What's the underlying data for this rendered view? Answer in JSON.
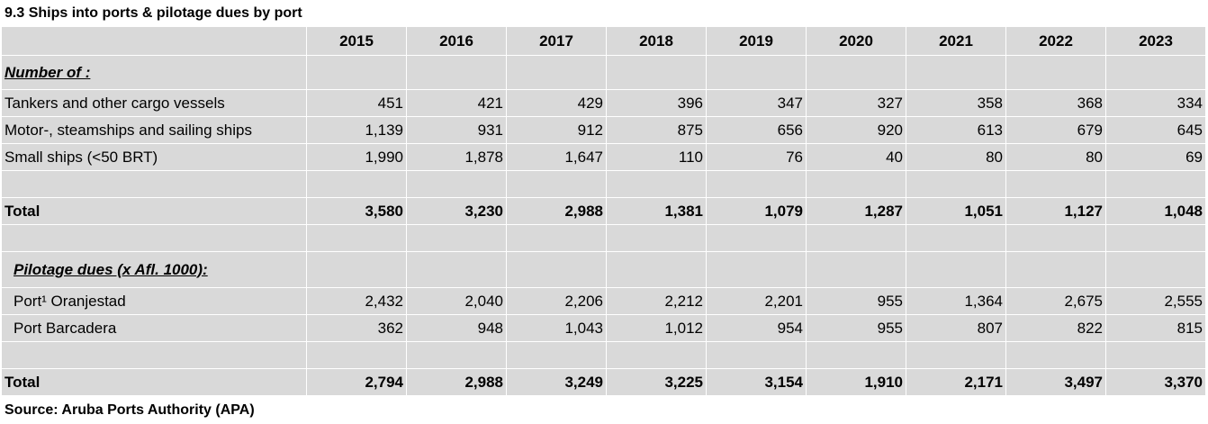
{
  "title": "9.3  Ships into ports & pilotage dues by port",
  "source": "Source: Aruba Ports Authority (APA)",
  "years": [
    "2015",
    "2016",
    "2017",
    "2018",
    "2019",
    "2020",
    "2021",
    "2022",
    "2023"
  ],
  "section1": {
    "heading": "Number  of :",
    "rows": [
      {
        "label": "Tankers and other cargo  vessels",
        "values": [
          "451",
          "421",
          "429",
          "396",
          "347",
          "327",
          "358",
          "368",
          "334"
        ]
      },
      {
        "label": "Motor-, steamships and sailing ships",
        "values": [
          "1,139",
          "931",
          "912",
          "875",
          "656",
          "920",
          "613",
          "679",
          "645"
        ]
      },
      {
        "label": "Small ships (<50 BRT)",
        "values": [
          "1,990",
          "1,878",
          "1,647",
          "110",
          "76",
          "40",
          "80",
          "80",
          "69"
        ]
      }
    ],
    "total": {
      "label": "Total",
      "values": [
        "3,580",
        "3,230",
        "2,988",
        "1,381",
        "1,079",
        "1,287",
        "1,051",
        "1,127",
        "1,048"
      ]
    }
  },
  "section2": {
    "heading": "Pilotage dues  (x Afl. 1000):",
    "rows": [
      {
        "label": "Port¹ Oranjestad",
        "values": [
          "2,432",
          "2,040",
          "2,206",
          "2,212",
          "2,201",
          "955",
          "1,364",
          "2,675",
          "2,555"
        ]
      },
      {
        "label": "Port Barcadera",
        "values": [
          "362",
          "948",
          "1,043",
          "1,012",
          "954",
          "955",
          "807",
          "822",
          "815"
        ]
      }
    ],
    "total": {
      "label": "Total",
      "values": [
        "2,794",
        "2,988",
        "3,249",
        "3,225",
        "3,154",
        "1,910",
        "2,171",
        "3,497",
        "3,370"
      ]
    }
  }
}
